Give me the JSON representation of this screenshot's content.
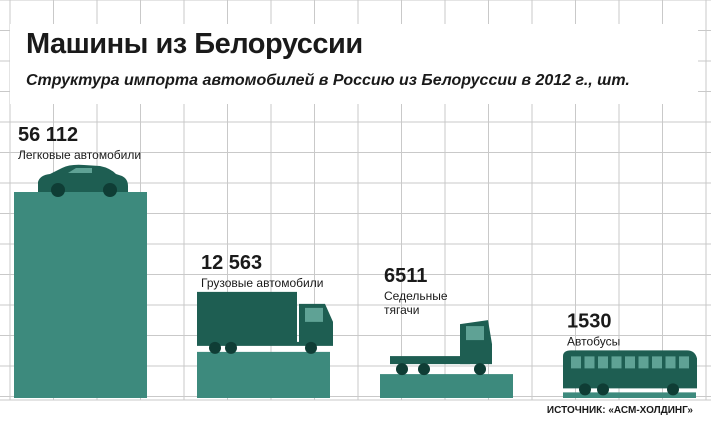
{
  "header": {
    "title": "Машины из Белоруссии",
    "subtitle": "Структура импорта автомобилей в Россию из Белоруссии в 2012 г., шт."
  },
  "source": "ИСТОЧНИК: «АСМ-ХОЛДИНГ»",
  "colors": {
    "bar": "#3d8a7d",
    "vehicle": "#1e5e52",
    "grid": "#c9c9c9",
    "text": "#1a1a1a"
  },
  "chart_data": {
    "type": "bar",
    "title": "Машины из Белоруссии",
    "subtitle": "Структура импорта автомобилей в Россию из Белоруссии в 2012 г., шт.",
    "categories": [
      "Легковые автомобили",
      "Грузовые автомобили",
      "Седельные тягачи",
      "Автобусы"
    ],
    "values": [
      56112,
      12563,
      6511,
      1530
    ],
    "value_labels": [
      "56 112",
      "12 563",
      "6511",
      "1530"
    ],
    "label_lines": [
      [
        "Легковые автомобили"
      ],
      [
        "Грузовые автомобили"
      ],
      [
        "Седельные",
        "тягачи"
      ],
      [
        "Автобусы"
      ]
    ],
    "icons": [
      "car-icon",
      "truck-icon",
      "tractor-unit-icon",
      "bus-icon"
    ],
    "grid": true,
    "legend": "none",
    "ylim": [
      0,
      56112
    ]
  }
}
